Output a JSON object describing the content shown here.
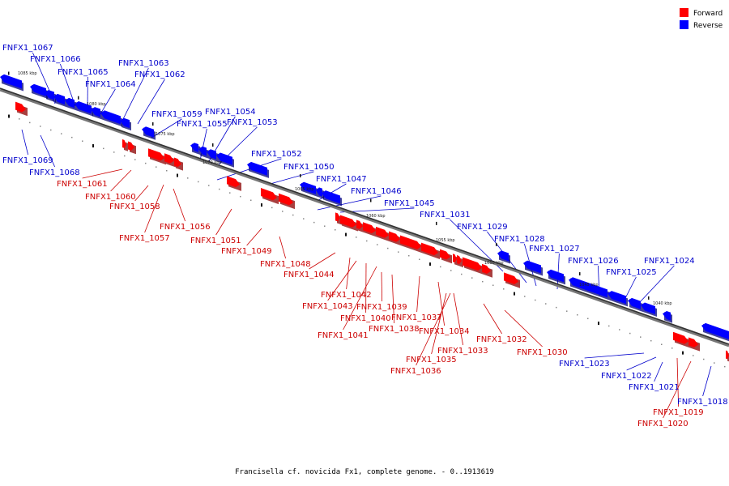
{
  "legend": {
    "forward": {
      "label": "Forward",
      "color": "#ff0000"
    },
    "reverse": {
      "label": "Reverse",
      "color": "#0000ff"
    }
  },
  "caption": "Francisella cf. novicida Fx1, complete genome. - 0..1913619",
  "ticks": [
    "1085 kbp",
    "1080 kbp",
    "1075 kbp",
    "1070 kbp",
    "1065 kbp",
    "1060 kbp",
    "1055 kbp",
    "1050 kbp",
    "1045 kbp",
    "1040 kbp"
  ],
  "genes": {
    "reverse": [
      "FNFX1_1067",
      "FNFX1_1066",
      "FNFX1_1065",
      "FNFX1_1064",
      "FNFX1_1063",
      "FNFX1_1062",
      "FNFX1_1059",
      "FNFX1_1055",
      "FNFX1_1054",
      "FNFX1_1053",
      "FNFX1_1052",
      "FNFX1_1050",
      "FNFX1_1047",
      "FNFX1_1046",
      "FNFX1_1045",
      "FNFX1_1031",
      "FNFX1_1029",
      "FNFX1_1028",
      "FNFX1_1027",
      "FNFX1_1026",
      "FNFX1_1025",
      "FNFX1_1024",
      "FNFX1_1069",
      "FNFX1_1068",
      "FNFX1_1023",
      "FNFX1_1022",
      "FNFX1_1021",
      "FNFX1_1018"
    ],
    "forward": [
      "FNFX1_1061",
      "FNFX1_1060",
      "FNFX1_1058",
      "FNFX1_1057",
      "FNFX1_1056",
      "FNFX1_1051",
      "FNFX1_1049",
      "FNFX1_1048",
      "FNFX1_1044",
      "FNFX1_1042",
      "FNFX1_1043",
      "FNFX1_1040",
      "FNFX1_1041",
      "FNFX1_1039",
      "FNFX1_1038",
      "FNFX1_1037",
      "FNFX1_1034",
      "FNFX1_1033",
      "FNFX1_1035",
      "FNFX1_1036",
      "FNFX1_1032",
      "FNFX1_1030",
      "FNFX1_1019",
      "FNFX1_1020"
    ]
  }
}
